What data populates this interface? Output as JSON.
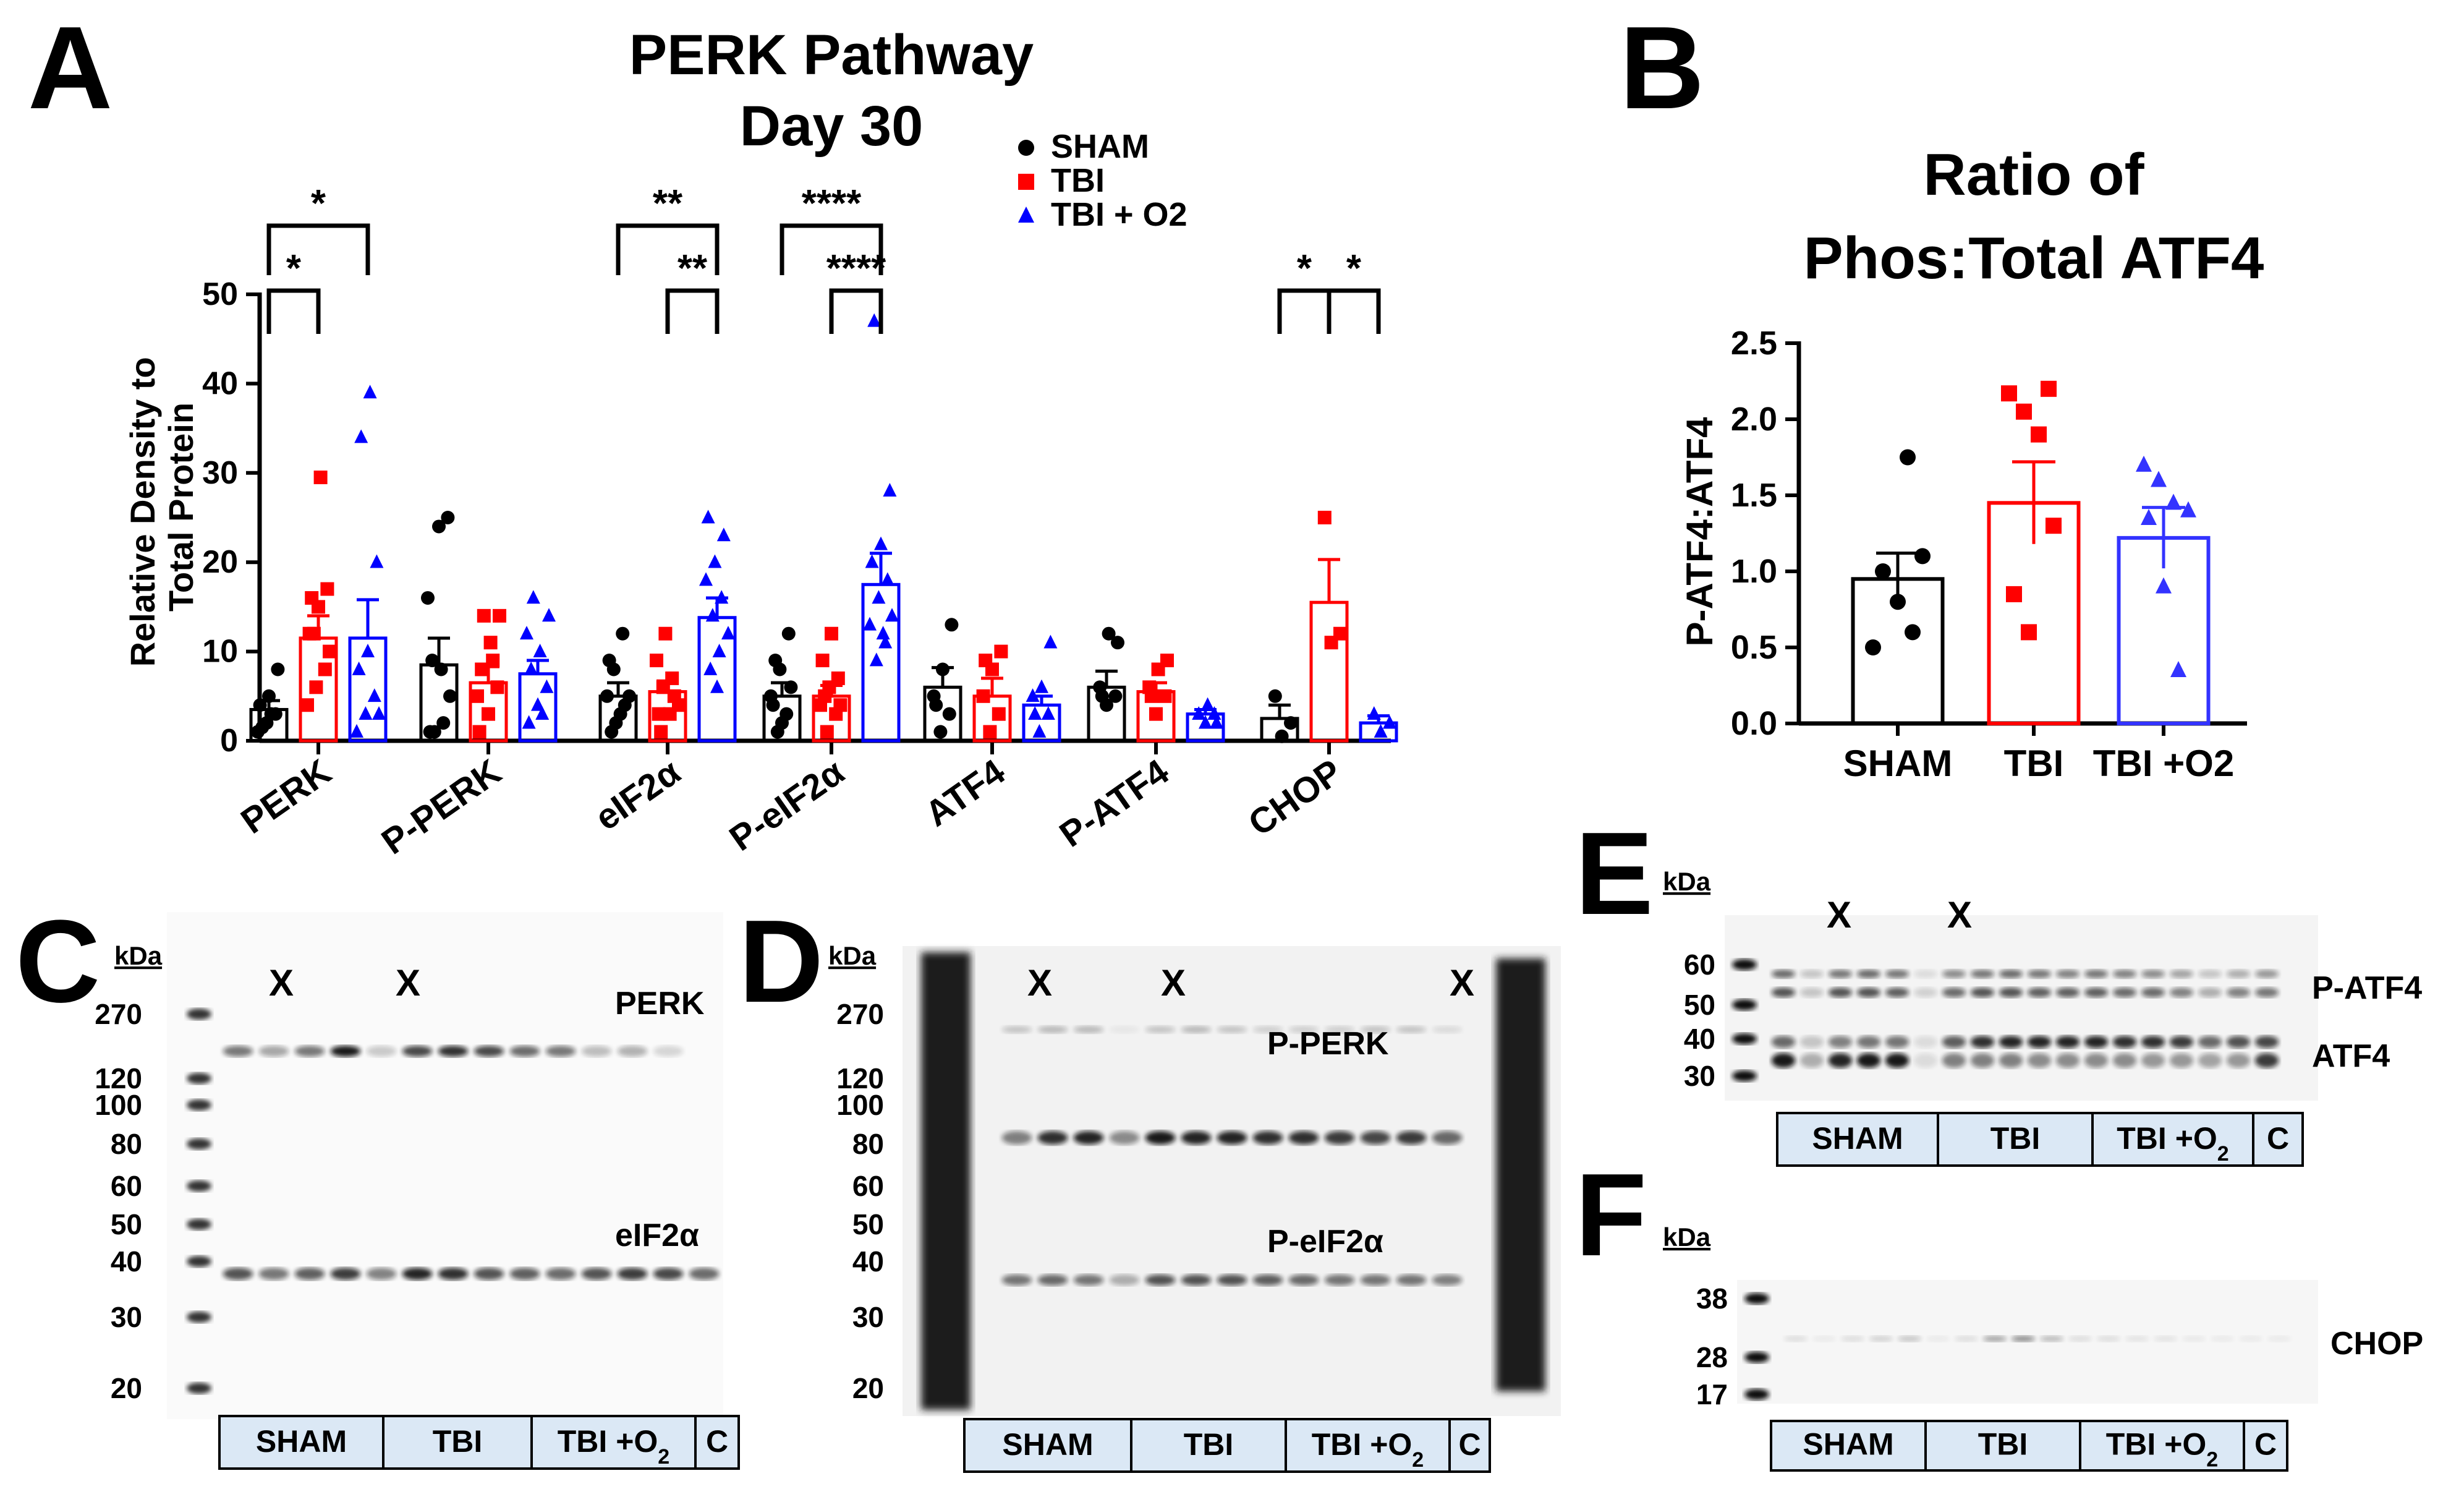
{
  "panel_letters": {
    "a": "A",
    "b": "B",
    "c": "C",
    "d": "D",
    "e": "E",
    "f": "F"
  },
  "chart_data": [
    {
      "type": "bar",
      "title": "PERK Pathway",
      "subtitle": "Day 30",
      "ylabel": "Relative Density to Total Protein",
      "ylim": [
        0,
        50
      ],
      "yticks": [
        "0",
        "10",
        "20",
        "30",
        "40",
        "50"
      ],
      "categories": [
        "PERK",
        "P-PERK",
        "eIF2α",
        "P-eIF2α",
        "ATF4",
        "P-ATF4",
        "CHOP"
      ],
      "legend": [
        {
          "name": "SHAM",
          "color": "#000000",
          "marker": "circle"
        },
        {
          "name": "TBI",
          "color": "#ff0000",
          "marker": "square"
        },
        {
          "name": "TBI + O2",
          "color": "#0000ff",
          "marker": "triangle"
        }
      ],
      "series": [
        {
          "name": "SHAM",
          "color": "#000000",
          "marker": "circle",
          "values": [
            3.5,
            8.5,
            5.0,
            5.0,
            6.0,
            6.0,
            2.5
          ],
          "errors": [
            1.0,
            3.0,
            1.5,
            1.5,
            2.2,
            1.8,
            1.5
          ],
          "points": [
            [
              1,
              2,
              3,
              4,
              5,
              8,
              1.5,
              3
            ],
            [
              1,
              24,
              25,
              9,
              8,
              5,
              1,
              2,
              16
            ],
            [
              1,
              3,
              5,
              8,
              12,
              5,
              2,
              4,
              9
            ],
            [
              1,
              3,
              5,
              8,
              12,
              4,
              2,
              6,
              9
            ],
            [
              1,
              3,
              5,
              8,
              13,
              4
            ],
            [
              4,
              5,
              6,
              12,
              11,
              5
            ],
            [
              0.5,
              2,
              5
            ]
          ]
        },
        {
          "name": "TBI",
          "color": "#ff0000",
          "marker": "square",
          "values": [
            11.5,
            6.5,
            5.5,
            5.0,
            5.0,
            5.5,
            15.5
          ],
          "errors": [
            2.5,
            1.8,
            1.2,
            1.2,
            2.0,
            1.0,
            4.8
          ],
          "points": [
            [
              4,
              6,
              8,
              12,
              15,
              17,
              16,
              29.5,
              10,
              12
            ],
            [
              1,
              3,
              6,
              8,
              11,
              14,
              14,
              9,
              5
            ],
            [
              1,
              3,
              4,
              6,
              7,
              9,
              12,
              5,
              3
            ],
            [
              1,
              3,
              4,
              6,
              7,
              9,
              12,
              4,
              5
            ],
            [
              1,
              3,
              5,
              8,
              10,
              9
            ],
            [
              3,
              5,
              6,
              8,
              9,
              5
            ],
            [
              11,
              12,
              25
            ]
          ]
        },
        {
          "name": "TBI + O2",
          "color": "#0000ff",
          "marker": "triangle",
          "values": [
            11.5,
            7.5,
            13.8,
            17.5,
            4.0,
            3.0,
            2.0
          ],
          "errors": [
            4.3,
            1.5,
            2.2,
            3.5,
            1.0,
            0.5,
            0.8
          ],
          "points": [
            [
              1,
              3,
              5,
              8,
              10,
              20,
              34,
              39,
              3
            ],
            [
              2,
              4,
              6,
              8,
              10,
              14,
              16,
              3,
              12
            ],
            [
              8,
              10,
              12,
              14,
              16,
              18,
              20,
              23,
              25,
              6
            ],
            [
              9,
              11,
              13,
              16,
              18,
              20,
              22,
              28,
              47,
              12,
              14
            ],
            [
              1,
              3,
              5,
              6,
              11,
              3
            ],
            [
              2,
              3,
              3,
              4,
              2
            ],
            [
              1,
              2,
              3
            ]
          ]
        }
      ],
      "significance": [
        {
          "label": "*"
        },
        {
          "label": "*"
        },
        {
          "label": "**"
        },
        {
          "label": "**"
        },
        {
          "label": "****"
        },
        {
          "label": "****"
        },
        {
          "label": "*"
        },
        {
          "label": "*"
        }
      ]
    },
    {
      "type": "bar",
      "title": "Ratio of",
      "subtitle": "Phos:Total ATF4",
      "ylabel": "P-ATF4:ATF4",
      "ylim": [
        0,
        2.5
      ],
      "yticks": [
        "0.0",
        "0.5",
        "1.0",
        "1.5",
        "2.0",
        "2.5"
      ],
      "categories": [
        "SHAM",
        "TBI",
        "TBI +O2"
      ],
      "values": [
        0.95,
        1.45,
        1.22
      ],
      "errors": [
        0.17,
        0.27,
        0.2
      ],
      "colors": [
        "#000000",
        "#ff0000",
        "#3333ff"
      ],
      "markers": [
        "circle",
        "square",
        "triangle"
      ],
      "points": [
        [
          0.5,
          0.6,
          0.8,
          1.0,
          1.1,
          1.75
        ],
        [
          0.6,
          0.85,
          1.3,
          1.9,
          2.05,
          2.17,
          2.2
        ],
        [
          0.35,
          0.9,
          1.35,
          1.4,
          1.45,
          1.6,
          1.7
        ]
      ]
    }
  ],
  "blots": {
    "kda_label": "kDa",
    "c": {
      "markers": [
        "270",
        "120",
        "100",
        "80",
        "60",
        "50",
        "40",
        "30",
        "20"
      ],
      "x_marks": [
        "X",
        "X"
      ],
      "protein_labels": [
        "PERK",
        "eIF2α"
      ],
      "groups": [
        "SHAM",
        "TBI",
        "TBI +O",
        "C"
      ],
      "subscript": "2"
    },
    "d": {
      "markers": [
        "270",
        "120",
        "100",
        "80",
        "60",
        "50",
        "40",
        "30",
        "20"
      ],
      "x_marks": [
        "X",
        "X",
        "X"
      ],
      "protein_labels": [
        "P-PERK",
        "P-eIF2α"
      ],
      "groups": [
        "SHAM",
        "TBI",
        "TBI +O",
        "C"
      ],
      "subscript": "2"
    },
    "e": {
      "markers": [
        "60",
        "50",
        "40",
        "30"
      ],
      "x_marks": [
        "X",
        "X"
      ],
      "protein_labels": [
        "P-ATF4",
        "ATF4"
      ],
      "groups": [
        "SHAM",
        "TBI",
        "TBI +O",
        "C"
      ],
      "subscript": "2"
    },
    "f": {
      "markers": [
        "38",
        "28",
        "17"
      ],
      "protein_labels": [
        "CHOP"
      ],
      "groups": [
        "SHAM",
        "TBI",
        "TBI +O",
        "C"
      ],
      "subscript": "2"
    }
  }
}
